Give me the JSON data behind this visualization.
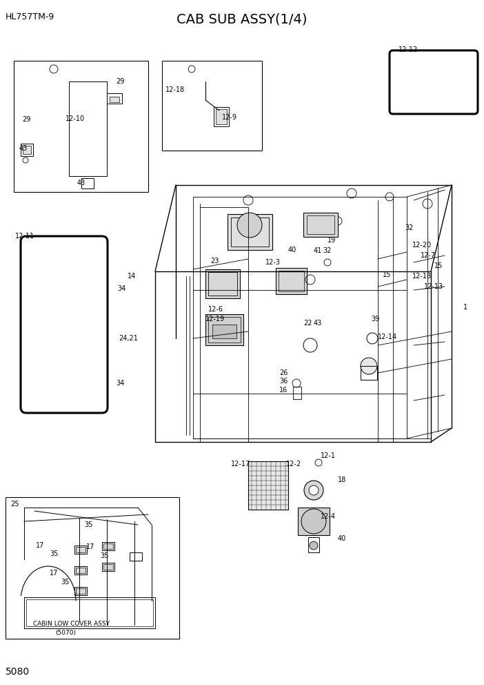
{
  "title": "CAB SUB ASSY(1/4)",
  "subtitle": "HL757TM-9",
  "page": "5080",
  "bg_color": "#ffffff",
  "figsize": [
    7.02,
    9.92
  ],
  "dpi": 100,
  "title_fontsize": 14,
  "subtitle_fontsize": 9,
  "page_fontsize": 10,
  "label_fontsize": 7
}
